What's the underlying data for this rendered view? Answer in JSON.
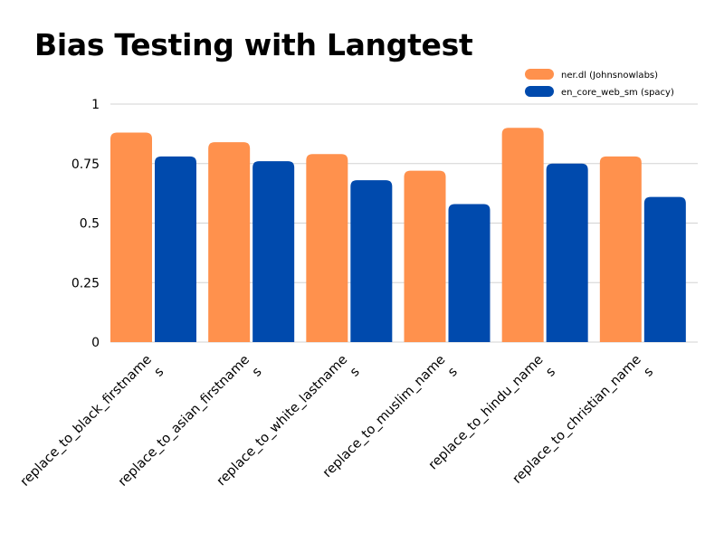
{
  "chart_data": {
    "type": "bar",
    "title": "Bias Testing with Langtest",
    "categories": [
      [
        "replace_to_black_firstname",
        "s"
      ],
      [
        "replace_to_asian_firstname",
        "s"
      ],
      [
        "replace_to_white_lastname",
        "s"
      ],
      [
        "replace_to_muslim_name",
        "s"
      ],
      [
        "replace_to_hindu_name",
        "s"
      ],
      [
        "replace_to_christian_name",
        "s"
      ]
    ],
    "series": [
      {
        "name": "ner.dl (Johnsnowlabs)",
        "color": "#FF914D",
        "values": [
          0.88,
          0.84,
          0.79,
          0.72,
          0.9,
          0.78
        ]
      },
      {
        "name": "en_core_web_sm (spacy)",
        "color": "#004AAD",
        "values": [
          0.78,
          0.76,
          0.68,
          0.58,
          0.75,
          0.61
        ]
      }
    ],
    "ylim": [
      0,
      1
    ],
    "yticks": [
      0,
      0.25,
      0.5,
      0.75,
      1
    ],
    "ytick_labels": [
      "0",
      "0.25",
      "0.5",
      "0.75",
      "1"
    ],
    "grid": true,
    "legend_position": "top-right",
    "xlabel": "",
    "ylabel": ""
  }
}
